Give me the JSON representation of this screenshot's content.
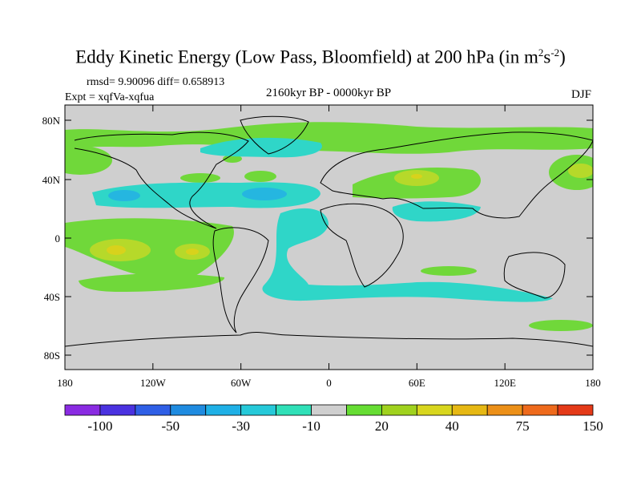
{
  "title": {
    "main": "Eddy Kinetic Energy (Low Pass, Bloomfield) at 200 hPa (in m",
    "sup1": "2",
    "mid": "s",
    "sup2": "-2",
    "close": ")"
  },
  "stats": "rmsd= 9.90096 diff= 0.658913",
  "experiment": "Expt = xqfVa-xqfua",
  "period": "2160kyr BP - 0000kyr BP",
  "season": "DJF",
  "axes": {
    "lat_labels": [
      "80N",
      "40N",
      "0",
      "40S",
      "80S"
    ],
    "lon_labels": [
      "180",
      "120W",
      "60W",
      "0",
      "60E",
      "120E",
      "180"
    ]
  },
  "colorbar": {
    "colors": [
      "#8a2be2",
      "#4a32e0",
      "#2f5fe6",
      "#1f8be0",
      "#1fb0e6",
      "#26c9d9",
      "#30e0b8",
      "#cfcfcf",
      "#66dd33",
      "#a0d21e",
      "#d8d61e",
      "#e6b814",
      "#ec9018",
      "#ee6a1c",
      "#e43a18"
    ],
    "labels": [
      "-100",
      "-50",
      "-30",
      "-10",
      "20",
      "40",
      "75",
      "150"
    ]
  },
  "palette": {
    "land_bg": "#cfcfcf",
    "cyan": "#2fd6c8",
    "blue": "#25b6e0",
    "green": "#70d83a",
    "yellowgreen": "#b6d92a",
    "yellow": "#d8d21c"
  }
}
